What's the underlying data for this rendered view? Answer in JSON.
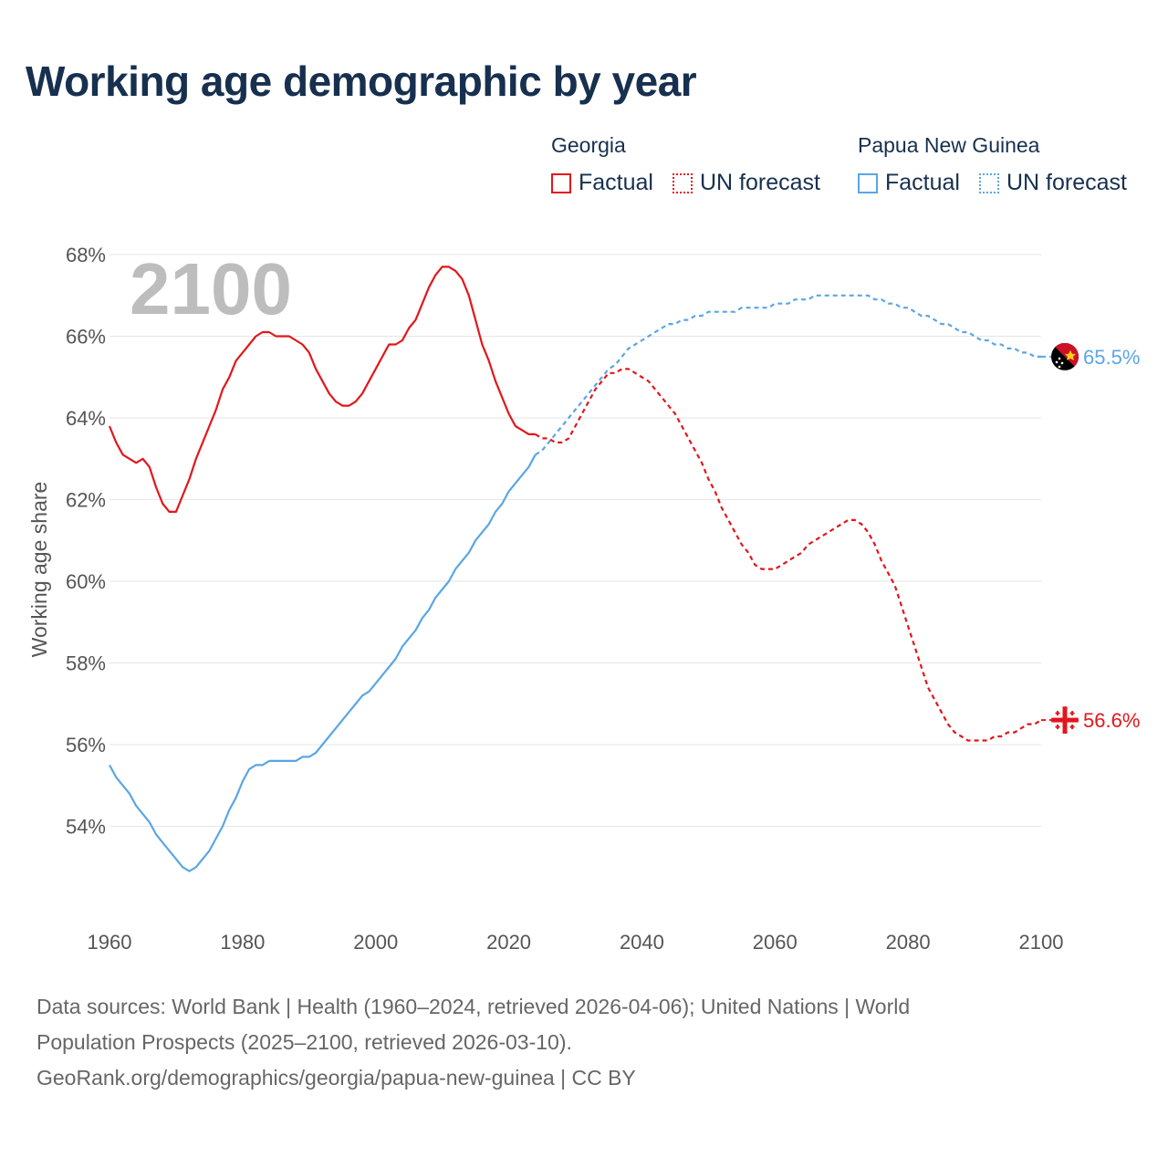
{
  "title": "Working age demographic by year",
  "legend": {
    "groups": [
      {
        "name": "Georgia",
        "factual": "Factual",
        "forecast": "UN forecast",
        "color": "#e3161b"
      },
      {
        "name": "Papua New Guinea",
        "factual": "Factual",
        "forecast": "UN forecast",
        "color": "#5aa6e5"
      }
    ]
  },
  "footer": {
    "line1": "Data sources: World Bank | Health (1960–2024, retrieved 2026-04-06); United Nations | World",
    "line2": "Population Prospects (2025–2100, retrieved 2026-03-10).",
    "line3": "GeoRank.org/demographics/georgia/papua-new-guinea | CC BY"
  },
  "chart_data": {
    "type": "line",
    "title": "Working age demographic by year",
    "xlabel": "",
    "ylabel": "Working age share",
    "year_label": "2100",
    "xlim": [
      1960,
      2100
    ],
    "ylim": [
      52,
      68
    ],
    "grid": true,
    "x_ticks": [
      "1960",
      "1980",
      "2000",
      "2020",
      "2040",
      "2060",
      "2080",
      "2100"
    ],
    "x_tick_values": [
      1960,
      1980,
      2000,
      2020,
      2040,
      2060,
      2080,
      2100
    ],
    "y_ticks": [
      "68%",
      "66%",
      "64%",
      "62%",
      "60%",
      "58%",
      "56%",
      "54%"
    ],
    "y_tick_values": [
      68,
      66,
      64,
      62,
      60,
      58,
      56,
      54
    ],
    "series": [
      {
        "name": "Georgia",
        "color": "#e3161b",
        "end_label": "56.6%",
        "factual": [
          [
            1960,
            63.8
          ],
          [
            1961,
            63.4
          ],
          [
            1962,
            63.1
          ],
          [
            1963,
            63.0
          ],
          [
            1964,
            62.9
          ],
          [
            1965,
            63.0
          ],
          [
            1966,
            62.8
          ],
          [
            1967,
            62.3
          ],
          [
            1968,
            61.9
          ],
          [
            1969,
            61.7
          ],
          [
            1970,
            61.7
          ],
          [
            1971,
            62.1
          ],
          [
            1972,
            62.5
          ],
          [
            1973,
            63.0
          ],
          [
            1974,
            63.4
          ],
          [
            1975,
            63.8
          ],
          [
            1976,
            64.2
          ],
          [
            1977,
            64.7
          ],
          [
            1978,
            65.0
          ],
          [
            1979,
            65.4
          ],
          [
            1980,
            65.6
          ],
          [
            1981,
            65.8
          ],
          [
            1982,
            66.0
          ],
          [
            1983,
            66.1
          ],
          [
            1984,
            66.1
          ],
          [
            1985,
            66.0
          ],
          [
            1986,
            66.0
          ],
          [
            1987,
            66.0
          ],
          [
            1988,
            65.9
          ],
          [
            1989,
            65.8
          ],
          [
            1990,
            65.6
          ],
          [
            1991,
            65.2
          ],
          [
            1992,
            64.9
          ],
          [
            1993,
            64.6
          ],
          [
            1994,
            64.4
          ],
          [
            1995,
            64.3
          ],
          [
            1996,
            64.3
          ],
          [
            1997,
            64.4
          ],
          [
            1998,
            64.6
          ],
          [
            1999,
            64.9
          ],
          [
            2000,
            65.2
          ],
          [
            2001,
            65.5
          ],
          [
            2002,
            65.8
          ],
          [
            2003,
            65.8
          ],
          [
            2004,
            65.9
          ],
          [
            2005,
            66.2
          ],
          [
            2006,
            66.4
          ],
          [
            2007,
            66.8
          ],
          [
            2008,
            67.2
          ],
          [
            2009,
            67.5
          ],
          [
            2010,
            67.7
          ],
          [
            2011,
            67.7
          ],
          [
            2012,
            67.6
          ],
          [
            2013,
            67.4
          ],
          [
            2014,
            67.0
          ],
          [
            2015,
            66.4
          ],
          [
            2016,
            65.8
          ],
          [
            2017,
            65.4
          ],
          [
            2018,
            64.9
          ],
          [
            2019,
            64.5
          ],
          [
            2020,
            64.1
          ],
          [
            2021,
            63.8
          ],
          [
            2022,
            63.7
          ],
          [
            2023,
            63.6
          ],
          [
            2024,
            63.6
          ]
        ],
        "forecast": [
          [
            2024,
            63.6
          ],
          [
            2025,
            63.5
          ],
          [
            2026,
            63.5
          ],
          [
            2027,
            63.4
          ],
          [
            2028,
            63.4
          ],
          [
            2029,
            63.5
          ],
          [
            2030,
            63.8
          ],
          [
            2031,
            64.1
          ],
          [
            2032,
            64.4
          ],
          [
            2033,
            64.7
          ],
          [
            2034,
            64.9
          ],
          [
            2035,
            65.1
          ],
          [
            2036,
            65.1
          ],
          [
            2037,
            65.2
          ],
          [
            2038,
            65.2
          ],
          [
            2039,
            65.1
          ],
          [
            2040,
            65.0
          ],
          [
            2041,
            64.9
          ],
          [
            2042,
            64.7
          ],
          [
            2043,
            64.5
          ],
          [
            2044,
            64.3
          ],
          [
            2045,
            64.1
          ],
          [
            2046,
            63.8
          ],
          [
            2047,
            63.5
          ],
          [
            2048,
            63.2
          ],
          [
            2049,
            62.9
          ],
          [
            2050,
            62.5
          ],
          [
            2051,
            62.2
          ],
          [
            2052,
            61.8
          ],
          [
            2053,
            61.5
          ],
          [
            2054,
            61.2
          ],
          [
            2055,
            60.9
          ],
          [
            2056,
            60.7
          ],
          [
            2057,
            60.4
          ],
          [
            2058,
            60.3
          ],
          [
            2059,
            60.3
          ],
          [
            2060,
            60.3
          ],
          [
            2061,
            60.4
          ],
          [
            2062,
            60.5
          ],
          [
            2063,
            60.6
          ],
          [
            2064,
            60.7
          ],
          [
            2065,
            60.9
          ],
          [
            2066,
            61.0
          ],
          [
            2067,
            61.1
          ],
          [
            2068,
            61.2
          ],
          [
            2069,
            61.3
          ],
          [
            2070,
            61.4
          ],
          [
            2071,
            61.5
          ],
          [
            2072,
            61.5
          ],
          [
            2073,
            61.4
          ],
          [
            2074,
            61.2
          ],
          [
            2075,
            60.9
          ],
          [
            2076,
            60.5
          ],
          [
            2077,
            60.2
          ],
          [
            2078,
            59.9
          ],
          [
            2079,
            59.4
          ],
          [
            2080,
            58.9
          ],
          [
            2081,
            58.4
          ],
          [
            2082,
            57.9
          ],
          [
            2083,
            57.4
          ],
          [
            2084,
            57.1
          ],
          [
            2085,
            56.8
          ],
          [
            2086,
            56.5
          ],
          [
            2087,
            56.3
          ],
          [
            2088,
            56.2
          ],
          [
            2089,
            56.1
          ],
          [
            2090,
            56.1
          ],
          [
            2091,
            56.1
          ],
          [
            2092,
            56.1
          ],
          [
            2093,
            56.2
          ],
          [
            2094,
            56.2
          ],
          [
            2095,
            56.3
          ],
          [
            2096,
            56.3
          ],
          [
            2097,
            56.4
          ],
          [
            2098,
            56.5
          ],
          [
            2099,
            56.5
          ],
          [
            2100,
            56.6
          ]
        ]
      },
      {
        "name": "Papua New Guinea",
        "color": "#5aa6e5",
        "end_label": "65.5%",
        "factual": [
          [
            1960,
            55.5
          ],
          [
            1961,
            55.2
          ],
          [
            1962,
            55.0
          ],
          [
            1963,
            54.8
          ],
          [
            1964,
            54.5
          ],
          [
            1965,
            54.3
          ],
          [
            1966,
            54.1
          ],
          [
            1967,
            53.8
          ],
          [
            1968,
            53.6
          ],
          [
            1969,
            53.4
          ],
          [
            1970,
            53.2
          ],
          [
            1971,
            53.0
          ],
          [
            1972,
            52.9
          ],
          [
            1973,
            53.0
          ],
          [
            1974,
            53.2
          ],
          [
            1975,
            53.4
          ],
          [
            1976,
            53.7
          ],
          [
            1977,
            54.0
          ],
          [
            1978,
            54.4
          ],
          [
            1979,
            54.7
          ],
          [
            1980,
            55.1
          ],
          [
            1981,
            55.4
          ],
          [
            1982,
            55.5
          ],
          [
            1983,
            55.5
          ],
          [
            1984,
            55.6
          ],
          [
            1985,
            55.6
          ],
          [
            1986,
            55.6
          ],
          [
            1987,
            55.6
          ],
          [
            1988,
            55.6
          ],
          [
            1989,
            55.7
          ],
          [
            1990,
            55.7
          ],
          [
            1991,
            55.8
          ],
          [
            1992,
            56.0
          ],
          [
            1993,
            56.2
          ],
          [
            1994,
            56.4
          ],
          [
            1995,
            56.6
          ],
          [
            1996,
            56.8
          ],
          [
            1997,
            57.0
          ],
          [
            1998,
            57.2
          ],
          [
            1999,
            57.3
          ],
          [
            2000,
            57.5
          ],
          [
            2001,
            57.7
          ],
          [
            2002,
            57.9
          ],
          [
            2003,
            58.1
          ],
          [
            2004,
            58.4
          ],
          [
            2005,
            58.6
          ],
          [
            2006,
            58.8
          ],
          [
            2007,
            59.1
          ],
          [
            2008,
            59.3
          ],
          [
            2009,
            59.6
          ],
          [
            2010,
            59.8
          ],
          [
            2011,
            60.0
          ],
          [
            2012,
            60.3
          ],
          [
            2013,
            60.5
          ],
          [
            2014,
            60.7
          ],
          [
            2015,
            61.0
          ],
          [
            2016,
            61.2
          ],
          [
            2017,
            61.4
          ],
          [
            2018,
            61.7
          ],
          [
            2019,
            61.9
          ],
          [
            2020,
            62.2
          ],
          [
            2021,
            62.4
          ],
          [
            2022,
            62.6
          ],
          [
            2023,
            62.8
          ],
          [
            2024,
            63.1
          ]
        ],
        "forecast": [
          [
            2024,
            63.1
          ],
          [
            2025,
            63.2
          ],
          [
            2026,
            63.4
          ],
          [
            2027,
            63.6
          ],
          [
            2028,
            63.8
          ],
          [
            2029,
            64.0
          ],
          [
            2030,
            64.2
          ],
          [
            2031,
            64.4
          ],
          [
            2032,
            64.6
          ],
          [
            2033,
            64.8
          ],
          [
            2034,
            65.0
          ],
          [
            2035,
            65.2
          ],
          [
            2036,
            65.3
          ],
          [
            2037,
            65.5
          ],
          [
            2038,
            65.7
          ],
          [
            2039,
            65.8
          ],
          [
            2040,
            65.9
          ],
          [
            2041,
            66.0
          ],
          [
            2042,
            66.1
          ],
          [
            2043,
            66.2
          ],
          [
            2044,
            66.3
          ],
          [
            2045,
            66.3
          ],
          [
            2046,
            66.4
          ],
          [
            2047,
            66.4
          ],
          [
            2048,
            66.5
          ],
          [
            2049,
            66.5
          ],
          [
            2050,
            66.6
          ],
          [
            2051,
            66.6
          ],
          [
            2052,
            66.6
          ],
          [
            2053,
            66.6
          ],
          [
            2054,
            66.6
          ],
          [
            2055,
            66.7
          ],
          [
            2056,
            66.7
          ],
          [
            2057,
            66.7
          ],
          [
            2058,
            66.7
          ],
          [
            2059,
            66.7
          ],
          [
            2060,
            66.8
          ],
          [
            2061,
            66.8
          ],
          [
            2062,
            66.8
          ],
          [
            2063,
            66.9
          ],
          [
            2064,
            66.9
          ],
          [
            2065,
            66.9
          ],
          [
            2066,
            67.0
          ],
          [
            2067,
            67.0
          ],
          [
            2068,
            67.0
          ],
          [
            2069,
            67.0
          ],
          [
            2070,
            67.0
          ],
          [
            2071,
            67.0
          ],
          [
            2072,
            67.0
          ],
          [
            2073,
            67.0
          ],
          [
            2074,
            67.0
          ],
          [
            2075,
            66.9
          ],
          [
            2076,
            66.9
          ],
          [
            2077,
            66.8
          ],
          [
            2078,
            66.8
          ],
          [
            2079,
            66.7
          ],
          [
            2080,
            66.7
          ],
          [
            2081,
            66.6
          ],
          [
            2082,
            66.5
          ],
          [
            2083,
            66.5
          ],
          [
            2084,
            66.4
          ],
          [
            2085,
            66.3
          ],
          [
            2086,
            66.3
          ],
          [
            2087,
            66.2
          ],
          [
            2088,
            66.1
          ],
          [
            2089,
            66.1
          ],
          [
            2090,
            66.0
          ],
          [
            2091,
            65.9
          ],
          [
            2092,
            65.9
          ],
          [
            2093,
            65.8
          ],
          [
            2094,
            65.8
          ],
          [
            2095,
            65.7
          ],
          [
            2096,
            65.7
          ],
          [
            2097,
            65.6
          ],
          [
            2098,
            65.6
          ],
          [
            2099,
            65.5
          ],
          [
            2100,
            65.5
          ]
        ]
      }
    ]
  }
}
